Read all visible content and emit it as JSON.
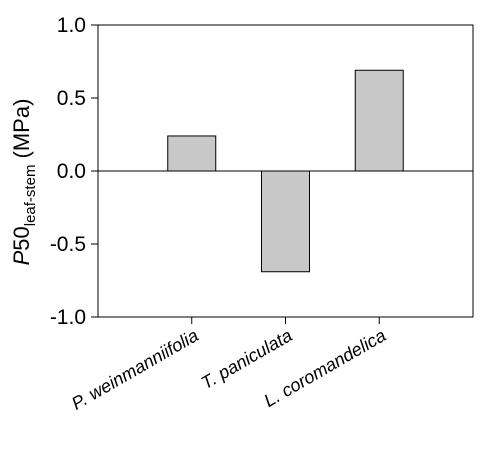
{
  "chart_data": {
    "type": "bar",
    "categories": [
      "P. weinmanniifolia",
      "T. paniculata",
      "L. coromandelica"
    ],
    "values": [
      0.24,
      -0.69,
      0.69
    ],
    "ylim": [
      -1.0,
      1.0
    ],
    "yticks": [
      "-1.0",
      "-0.5",
      "0.0",
      "0.5",
      "1.0"
    ],
    "ylabel": {
      "italic": "P",
      "main": "50",
      "subscript": "leaf-stem",
      "unit": " (MPa)"
    },
    "title": "",
    "xlabel": "",
    "grid": false,
    "zero_line": true,
    "bar_color": "#c8c8c8",
    "edge_color": "#000000"
  }
}
